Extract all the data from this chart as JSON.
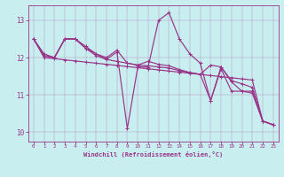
{
  "xlabel": "Windchill (Refroidissement éolien,°C)",
  "bg_color": "#c8eef0",
  "line_color": "#993388",
  "xlim": [
    -0.5,
    23.5
  ],
  "ylim": [
    9.75,
    13.4
  ],
  "yticks": [
    10,
    11,
    12,
    13
  ],
  "xticks": [
    0,
    1,
    2,
    3,
    4,
    5,
    6,
    7,
    8,
    9,
    10,
    11,
    12,
    13,
    14,
    15,
    16,
    17,
    18,
    19,
    20,
    21,
    22,
    23
  ],
  "line1": [
    12.5,
    12.0,
    11.97,
    11.94,
    11.91,
    11.88,
    11.85,
    11.82,
    11.79,
    11.76,
    11.73,
    11.7,
    11.67,
    11.64,
    11.61,
    11.58,
    11.55,
    11.52,
    11.49,
    11.46,
    11.43,
    11.4,
    10.3,
    10.2
  ],
  "line2": [
    12.5,
    12.1,
    12.0,
    12.5,
    12.5,
    12.25,
    12.1,
    11.95,
    12.15,
    10.1,
    11.75,
    11.75,
    13.0,
    13.2,
    12.5,
    12.1,
    11.85,
    10.85,
    11.7,
    11.1,
    11.1,
    11.05,
    10.3,
    10.2
  ],
  "line3": [
    12.5,
    12.05,
    12.0,
    12.5,
    12.5,
    12.25,
    12.05,
    11.95,
    11.9,
    11.85,
    11.8,
    11.9,
    11.82,
    11.78,
    11.68,
    11.6,
    11.55,
    10.85,
    11.75,
    11.35,
    11.1,
    11.1,
    10.3,
    10.2
  ],
  "line4": [
    12.5,
    12.05,
    12.0,
    12.5,
    12.5,
    12.3,
    12.1,
    12.0,
    12.2,
    11.85,
    11.8,
    11.78,
    11.75,
    11.72,
    11.65,
    11.6,
    11.55,
    11.8,
    11.75,
    11.38,
    11.3,
    11.2,
    10.3,
    10.2
  ]
}
